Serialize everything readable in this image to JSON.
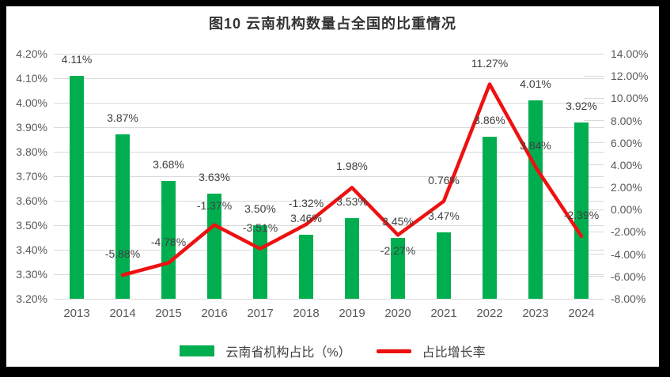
{
  "chart_data": {
    "type": "bar",
    "subtype": "combo-bar-line",
    "title": "图10 云南机构数量占全国的比重情况",
    "categories": [
      "2013",
      "2014",
      "2015",
      "2016",
      "2017",
      "2018",
      "2019",
      "2020",
      "2021",
      "2022",
      "2023",
      "2024"
    ],
    "series": [
      {
        "name": "云南省机构占比（%）",
        "type": "bar",
        "axis": "left",
        "color": "#00AE50",
        "values": [
          4.11,
          3.87,
          3.68,
          3.63,
          3.5,
          3.46,
          3.53,
          3.45,
          3.47,
          3.86,
          4.01,
          3.92
        ],
        "labels": [
          "4.11%",
          "3.87%",
          "3.68%",
          "3.63%",
          "3.50%",
          "3.46%",
          "3.53%",
          "3.45%",
          "3.47%",
          "3.86%",
          "4.01%",
          "3.92%"
        ]
      },
      {
        "name": "占比增长率",
        "type": "line",
        "axis": "right",
        "color": "#EE1111",
        "values": [
          null,
          -5.88,
          -4.78,
          -1.37,
          -3.51,
          -1.32,
          1.98,
          -2.27,
          0.76,
          11.27,
          3.84,
          -2.39
        ],
        "labels": [
          null,
          "-5.88%",
          "-4.78%",
          "-1.37%",
          "-3.51%",
          "-1.32%",
          "1.98%",
          "-2.27%",
          "0.76%",
          "11.27%",
          "3.84%",
          "-2.39%"
        ],
        "label_dy": [
          null,
          -27,
          -27,
          -25,
          -27,
          -27,
          -27,
          20,
          -27,
          -26,
          -27,
          -27
        ]
      }
    ],
    "left_axis": {
      "min": 3.2,
      "max": 4.2,
      "step": 0.1,
      "ticks": [
        "4.20%",
        "4.10%",
        "4.00%",
        "3.90%",
        "3.80%",
        "3.70%",
        "3.60%",
        "3.50%",
        "3.40%",
        "3.30%",
        "3.20%"
      ]
    },
    "right_axis": {
      "min": -8.0,
      "max": 14.0,
      "step": 2.0,
      "ticks": [
        "14.00%",
        "12.00%",
        "10.00%",
        "8.00%",
        "6.00%",
        "4.00%",
        "2.00%",
        "0.00%",
        "-2.00%",
        "-4.00%",
        "-6.00%",
        "-8.00%"
      ]
    },
    "grid": true,
    "gridline_color": "#d9d9d9",
    "legend_position": "bottom"
  }
}
